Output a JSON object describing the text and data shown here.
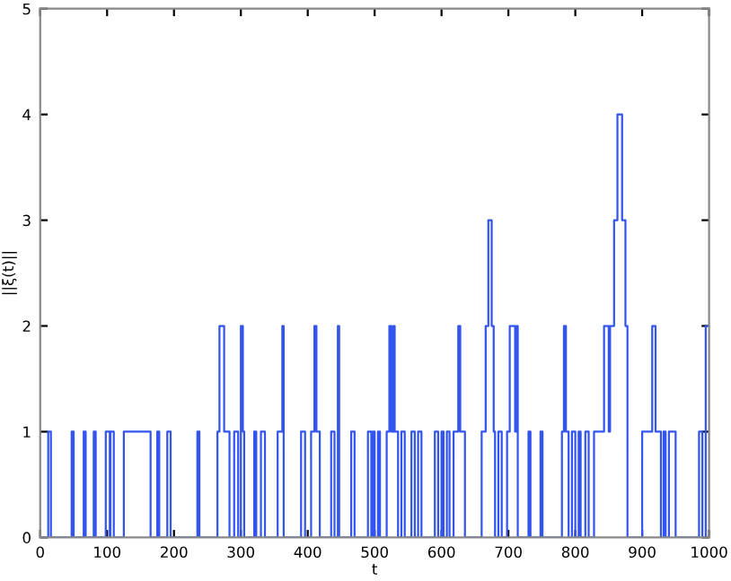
{
  "chart_data": {
    "type": "step",
    "xlabel": "t",
    "ylabel": "||ξ(t)||",
    "xlim": [
      0,
      1000
    ],
    "xticks": [
      0,
      100,
      200,
      300,
      400,
      500,
      600,
      700,
      800,
      900,
      1000
    ],
    "ylim": [
      0,
      5
    ],
    "yticks": [
      0,
      1,
      2,
      3,
      4,
      5
    ],
    "grid": false,
    "legend": false,
    "series": [
      {
        "color": "#3355ee",
        "x": [
          0,
          12,
          16,
          47,
          50,
          65,
          68,
          80,
          83,
          98,
          104,
          105,
          110,
          125,
          165,
          175,
          178,
          190,
          195,
          235,
          238,
          265,
          268,
          275,
          283,
          290,
          296,
          300,
          303,
          305,
          320,
          323,
          330,
          336,
          355,
          362,
          364,
          390,
          396,
          405,
          410,
          413,
          418,
          435,
          440,
          445,
          447,
          465,
          470,
          490,
          495,
          497,
          500,
          505,
          508,
          518,
          522,
          525,
          528,
          530,
          535,
          540,
          545,
          555,
          560,
          565,
          570,
          590,
          595,
          600,
          603,
          608,
          612,
          618,
          625,
          628,
          635,
          660,
          666,
          670,
          675,
          678,
          680,
          685,
          690,
          698,
          702,
          710,
          712,
          714,
          730,
          733,
          748,
          751,
          780,
          783,
          786,
          790,
          795,
          800,
          805,
          808,
          815,
          820,
          828,
          843,
          850,
          852,
          858,
          863,
          870,
          875,
          878,
          900,
          915,
          920,
          928,
          932,
          935,
          940,
          950,
          985,
          990,
          995,
          1000
        ],
        "values": [
          0,
          1,
          0,
          1,
          0,
          1,
          0,
          1,
          0,
          1,
          0,
          1,
          0,
          1,
          0,
          1,
          0,
          1,
          0,
          1,
          0,
          1,
          2,
          1,
          0,
          1,
          0,
          2,
          1,
          0,
          1,
          0,
          1,
          0,
          1,
          2,
          0,
          1,
          0,
          1,
          2,
          1,
          0,
          1,
          0,
          2,
          0,
          1,
          0,
          1,
          0,
          1,
          0,
          1,
          0,
          1,
          2,
          1,
          2,
          1,
          0,
          1,
          0,
          1,
          0,
          1,
          0,
          1,
          0,
          1,
          0,
          1,
          0,
          1,
          2,
          1,
          0,
          1,
          2,
          3,
          2,
          1,
          0,
          1,
          0,
          1,
          2,
          1,
          2,
          0,
          1,
          0,
          1,
          0,
          1,
          2,
          1,
          0,
          1,
          0,
          1,
          0,
          1,
          0,
          1,
          2,
          1,
          2,
          3,
          4,
          3,
          2,
          0,
          1,
          2,
          1,
          0,
          1,
          0,
          1,
          0,
          1,
          0,
          2,
          2
        ]
      }
    ]
  }
}
